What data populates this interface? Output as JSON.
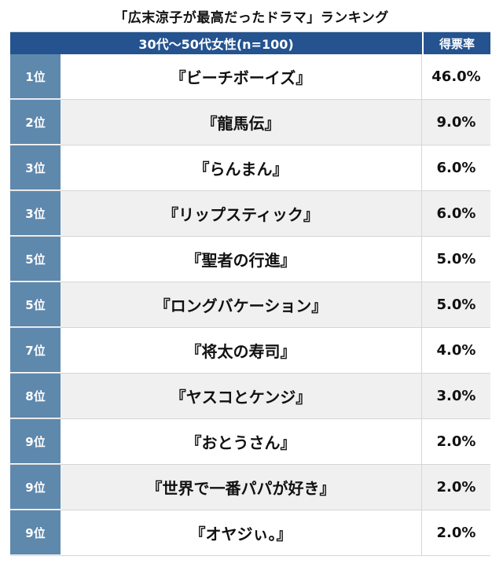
{
  "chart_data": {
    "type": "table",
    "title": "「広末涼子が最高だったドラマ」ランキング",
    "columns": [
      "30代〜50代女性(n=100)",
      "得票率"
    ],
    "rows": [
      {
        "rank": "1位",
        "drama": "『ビーチボーイズ』",
        "percent": "46.0%",
        "value": 46.0
      },
      {
        "rank": "2位",
        "drama": "『龍馬伝』",
        "percent": "9.0%",
        "value": 9.0
      },
      {
        "rank": "3位",
        "drama": "『らんまん』",
        "percent": "6.0%",
        "value": 6.0
      },
      {
        "rank": "3位",
        "drama": "『リップスティック』",
        "percent": "6.0%",
        "value": 6.0
      },
      {
        "rank": "5位",
        "drama": "『聖者の行進』",
        "percent": "5.0%",
        "value": 5.0
      },
      {
        "rank": "5位",
        "drama": "『ロングバケーション』",
        "percent": "5.0%",
        "value": 5.0
      },
      {
        "rank": "7位",
        "drama": "『将太の寿司』",
        "percent": "4.0%",
        "value": 4.0
      },
      {
        "rank": "8位",
        "drama": "『ヤスコとケンジ』",
        "percent": "3.0%",
        "value": 3.0
      },
      {
        "rank": "9位",
        "drama": "『おとうさん』",
        "percent": "2.0%",
        "value": 2.0
      },
      {
        "rank": "9位",
        "drama": "『世界で一番パパが好き』",
        "percent": "2.0%",
        "value": 2.0
      },
      {
        "rank": "9位",
        "drama": "『オヤジぃ。』",
        "percent": "2.0%",
        "value": 2.0
      }
    ]
  },
  "colors": {
    "header_bg": "#24538f",
    "rank_bg": "#5f88ad",
    "alt_row_bg": "#f0f0f0"
  }
}
